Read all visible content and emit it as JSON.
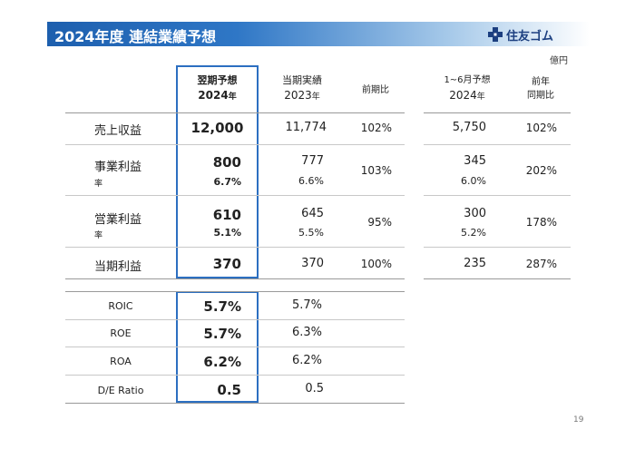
{
  "header": {
    "title": "2024年度 連結業績予想",
    "logo_text": "住友ゴム"
  },
  "unit": "億円",
  "columns": {
    "forecast": {
      "line1": "翌期予想",
      "line2": "2024",
      "line2_suffix": "年"
    },
    "actual": {
      "line1": "当期実績",
      "line2": "2023",
      "line2_suffix": "年"
    },
    "yoy": {
      "line1": "前期比"
    },
    "h1": {
      "line1": "1~6月予想",
      "line2": "2024",
      "line2_suffix": "年"
    },
    "h1_yoy": {
      "line1": "前年",
      "line2": "同期比"
    }
  },
  "rows": [
    {
      "label": "売上収益",
      "forecast": "12,000",
      "actual": "11,774",
      "yoy": "102%",
      "h1": "5,750",
      "h1_yoy": "102%"
    },
    {
      "label": "事業利益",
      "rate_label": "率",
      "forecast": "800",
      "forecast_rate": "6.7%",
      "actual": "777",
      "actual_rate": "6.6%",
      "yoy": "103%",
      "h1": "345",
      "h1_rate": "6.0%",
      "h1_yoy": "202%"
    },
    {
      "label": "営業利益",
      "rate_label": "率",
      "forecast": "610",
      "forecast_rate": "5.1%",
      "actual": "645",
      "actual_rate": "5.5%",
      "yoy": "95%",
      "h1": "300",
      "h1_rate": "5.2%",
      "h1_yoy": "178%"
    },
    {
      "label": "当期利益",
      "forecast": "370",
      "actual": "370",
      "yoy": "100%",
      "h1": "235",
      "h1_yoy": "287%"
    }
  ],
  "ratios": [
    {
      "label": "ROIC",
      "forecast": "5.7%",
      "actual": "5.7%"
    },
    {
      "label": "ROE",
      "forecast": "5.7%",
      "actual": "6.3%"
    },
    {
      "label": "ROA",
      "forecast": "6.2%",
      "actual": "6.2%"
    },
    {
      "label": "D/E Ratio",
      "forecast": "0.5",
      "actual": "0.5"
    }
  ],
  "page_number": "19",
  "colors": {
    "accent": "#2c6fc1",
    "title_bg": "#1d5fae",
    "logo": "#1c3f80"
  }
}
